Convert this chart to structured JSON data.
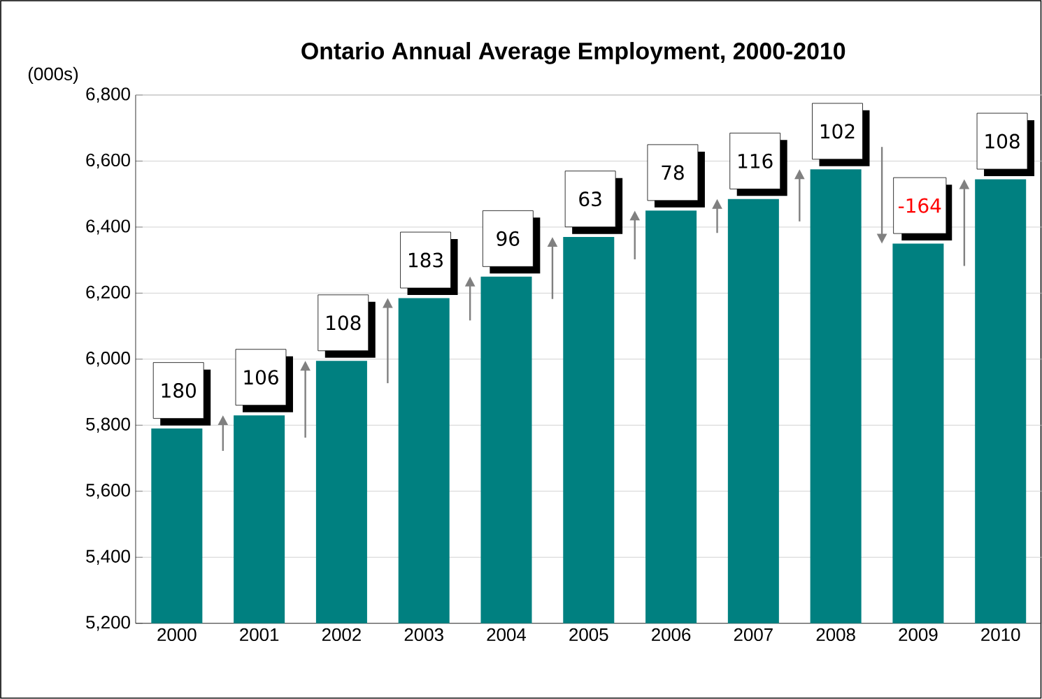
{
  "chart_data": {
    "type": "bar",
    "title": "Ontario Annual Average Employment, 2000-2010",
    "ylabel": "(000s)",
    "categories": [
      "2000",
      "2001",
      "2002",
      "2003",
      "2004",
      "2005",
      "2006",
      "2007",
      "2008",
      "2009",
      "2010"
    ],
    "values": [
      5790,
      5830,
      5995,
      6185,
      6250,
      6370,
      6450,
      6485,
      6575,
      6350,
      6545
    ],
    "color": "#008080",
    "ylim": [
      5200,
      6800
    ],
    "yticks": [
      {
        "value": 5200,
        "label": "5,200"
      },
      {
        "value": 5400,
        "label": "5,400"
      },
      {
        "value": 5600,
        "label": "5,600"
      },
      {
        "value": 5800,
        "label": "5,800"
      },
      {
        "value": 6000,
        "label": "6,000"
      },
      {
        "value": 6200,
        "label": "6,200"
      },
      {
        "value": 6400,
        "label": "6,400"
      },
      {
        "value": 6600,
        "label": "6,600"
      },
      {
        "value": 6800,
        "label": "6,800"
      }
    ],
    "grid": "y",
    "annotations": [
      {
        "text": "180",
        "x": "2000",
        "y": 5790
      },
      {
        "text": "106",
        "x": "2001",
        "y": 5830
      },
      {
        "text": "108",
        "x": "2002",
        "y": 5995
      },
      {
        "text": "183",
        "x": "2003",
        "y": 6185
      },
      {
        "text": "96",
        "x": "2004",
        "y": 6250
      },
      {
        "text": "63",
        "x": "2005",
        "y": 6370
      },
      {
        "text": "78",
        "x": "2006",
        "y": 6450
      },
      {
        "text": "116",
        "x": "2007",
        "y": 6485
      },
      {
        "text": "102",
        "x": "2008",
        "y": 6575
      },
      {
        "text": "-164",
        "x": "2009",
        "y": 6350
      },
      {
        "text": "108",
        "x": "2010",
        "y": 6545
      }
    ]
  }
}
